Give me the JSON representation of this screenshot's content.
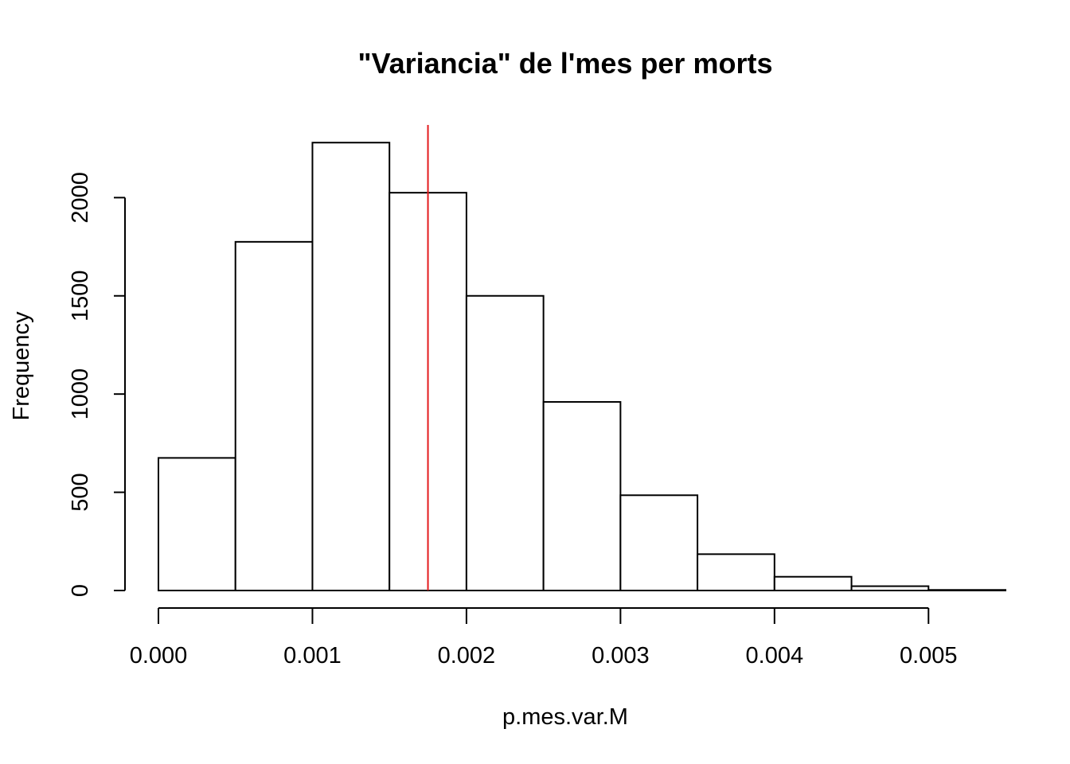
{
  "chart_data": {
    "type": "bar",
    "title": "\"Variancia\" de l'mes per morts",
    "xlabel": "p.mes.var.M",
    "ylabel": "Frequency",
    "bin_edges": [
      0.0,
      0.0005,
      0.001,
      0.0015,
      0.002,
      0.0025,
      0.003,
      0.0035,
      0.004,
      0.0045,
      0.005,
      0.0055
    ],
    "values": [
      675,
      1775,
      2280,
      2025,
      1500,
      960,
      485,
      185,
      70,
      22,
      3
    ],
    "xlim": [
      0.0,
      0.0055
    ],
    "ylim": [
      0,
      2370
    ],
    "x_ticks": [
      0.0,
      0.001,
      0.002,
      0.003,
      0.004,
      0.005
    ],
    "x_tick_labels": [
      "0.000",
      "0.001",
      "0.002",
      "0.003",
      "0.004",
      "0.005"
    ],
    "y_ticks": [
      0,
      500,
      1000,
      1500,
      2000
    ],
    "y_tick_labels": [
      "0",
      "500",
      "1000",
      "1500",
      "2000"
    ],
    "reference_line": {
      "x": 0.00175,
      "color": "#e31a1c"
    },
    "grid": false,
    "bar_fill": "#ffffff",
    "bar_stroke": "#000000"
  }
}
